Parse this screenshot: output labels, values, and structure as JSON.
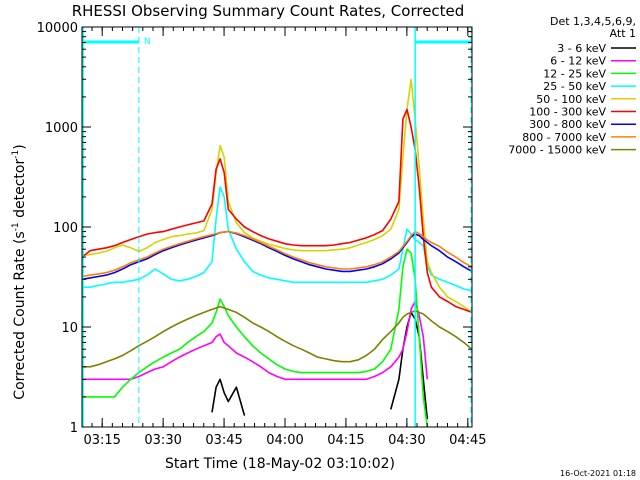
{
  "chart_data": {
    "type": "line",
    "title": "RHESSI Observing Summary Count Rates, Corrected",
    "xlabel": "Start Time (18-May-02 03:10:02)",
    "ylabel": "Corrected Count Rate (s⁻¹ detector⁻¹)",
    "ylabel_main": "Corrected Count Rate (s",
    "ylabel_sup1": "-1",
    "ylabel_mid": " detector",
    "ylabel_sup2": "-1",
    "ylabel_end": ")",
    "yscale": "log",
    "ylim": [
      1,
      10000
    ],
    "xlim_minutes": [
      0,
      96
    ],
    "x_tick_labels": [
      "03:15",
      "03:30",
      "03:45",
      "04:00",
      "04:15",
      "04:30",
      "04:45"
    ],
    "x_tick_minutes": [
      4.97,
      19.97,
      34.97,
      49.97,
      64.97,
      79.97,
      94.97
    ],
    "y_tick_labels": [
      "1",
      "10",
      "100",
      "1000",
      "10000"
    ],
    "y_tick_values": [
      1,
      10,
      100,
      1000,
      10000
    ],
    "legend_header": [
      "Det 1,3,4,5,6,9,",
      "Att 1"
    ],
    "legend_position": "right",
    "timestamp": "16-Oct-2021 01:18",
    "annotation_N": "N",
    "attenuator_markers_minutes": [
      0,
      14,
      82,
      96
    ],
    "x_minutes": [
      0,
      2,
      4,
      6,
      8,
      10,
      12,
      14,
      16,
      18,
      20,
      22,
      24,
      26,
      28,
      30,
      32,
      33,
      34,
      35,
      36,
      38,
      40,
      42,
      44,
      46,
      48,
      50,
      52,
      54,
      56,
      58,
      60,
      62,
      64,
      66,
      68,
      70,
      72,
      74,
      76,
      78,
      79,
      80,
      81,
      82,
      83,
      84,
      85,
      86,
      88,
      90,
      92,
      94,
      96
    ],
    "series": [
      {
        "name": "3 - 6 keV",
        "color": "#000000",
        "values": [
          null,
          null,
          null,
          null,
          null,
          null,
          null,
          null,
          null,
          null,
          null,
          null,
          null,
          null,
          null,
          null,
          1.4,
          2.5,
          3,
          2.2,
          1.8,
          2.5,
          1.3,
          null,
          null,
          null,
          null,
          null,
          null,
          null,
          null,
          null,
          null,
          null,
          null,
          null,
          null,
          null,
          null,
          null,
          1.5,
          3,
          6,
          10,
          14,
          12,
          8,
          3,
          1.2,
          null,
          null,
          null,
          null,
          null,
          null
        ]
      },
      {
        "name": "6 - 12 keV",
        "color": "#ff00ff",
        "values": [
          3,
          3,
          3,
          3,
          3,
          3,
          3,
          3.2,
          3.5,
          3.8,
          4,
          4.5,
          5,
          5.5,
          6,
          6.5,
          7,
          8,
          8.5,
          7,
          6.5,
          5.5,
          5,
          4.5,
          4,
          3.5,
          3.2,
          3,
          3,
          3,
          3,
          3,
          3,
          3,
          3,
          3,
          3,
          3,
          3.2,
          3.5,
          4,
          5,
          6,
          9,
          15,
          18,
          13,
          8,
          3,
          null,
          null,
          null,
          null,
          null,
          null
        ]
      },
      {
        "name": "12 - 25 keV",
        "color": "#00ff00",
        "values": [
          2,
          2,
          2,
          2,
          2,
          2.5,
          3,
          3.5,
          4,
          4.5,
          5,
          5.5,
          6,
          7,
          8,
          9,
          11,
          14,
          19,
          16,
          13,
          10,
          8,
          6.5,
          5.5,
          4.8,
          4.2,
          3.8,
          3.6,
          3.5,
          3.5,
          3.5,
          3.5,
          3.5,
          3.5,
          3.5,
          3.5,
          3.6,
          3.8,
          4.5,
          6,
          15,
          40,
          60,
          55,
          30,
          8,
          2,
          1,
          null,
          null,
          null,
          null,
          null,
          null
        ]
      },
      {
        "name": "25 - 50 keV",
        "color": "#00ffff",
        "values": [
          25,
          25,
          26,
          27,
          28,
          28,
          29,
          30,
          33,
          38,
          34,
          30,
          29,
          30,
          32,
          35,
          45,
          120,
          250,
          200,
          95,
          60,
          45,
          36,
          33,
          31,
          30,
          29,
          28,
          28,
          28,
          28,
          28,
          28,
          28,
          28,
          28,
          28,
          29,
          30,
          33,
          38,
          60,
          95,
          85,
          75,
          70,
          65,
          40,
          33,
          30,
          28,
          26,
          24,
          23
        ]
      },
      {
        "name": "50 - 100 keV",
        "color": "#d4d400",
        "values": [
          52,
          53,
          55,
          57,
          62,
          66,
          62,
          57,
          62,
          70,
          75,
          80,
          82,
          85,
          87,
          92,
          150,
          350,
          650,
          500,
          180,
          110,
          88,
          78,
          72,
          67,
          64,
          61,
          59,
          58,
          58,
          58,
          58,
          59,
          60,
          62,
          66,
          70,
          75,
          82,
          95,
          150,
          500,
          1500,
          3000,
          1200,
          400,
          120,
          45,
          35,
          25,
          20,
          18,
          16,
          14
        ]
      },
      {
        "name": "100 - 300 keV",
        "color": "#ff0000",
        "values": [
          50,
          58,
          60,
          62,
          65,
          70,
          75,
          80,
          85,
          88,
          90,
          95,
          100,
          105,
          110,
          115,
          170,
          380,
          480,
          350,
          150,
          120,
          100,
          90,
          82,
          76,
          72,
          68,
          66,
          65,
          65,
          65,
          65,
          66,
          68,
          70,
          74,
          78,
          84,
          92,
          120,
          180,
          1200,
          1500,
          1000,
          600,
          250,
          80,
          35,
          25,
          20,
          18,
          16,
          15,
          14
        ]
      },
      {
        "name": "300 - 800 keV",
        "color": "#0000ff",
        "values": [
          30,
          31,
          32,
          33,
          35,
          38,
          42,
          45,
          48,
          53,
          58,
          62,
          66,
          70,
          74,
          78,
          82,
          85,
          88,
          89,
          90,
          86,
          80,
          74,
          68,
          62,
          57,
          52,
          48,
          45,
          42,
          40,
          38,
          37,
          36,
          36,
          37,
          38,
          40,
          43,
          48,
          55,
          62,
          70,
          80,
          85,
          82,
          75,
          70,
          65,
          58,
          50,
          45,
          40,
          36
        ]
      },
      {
        "name": "800 - 7000 keV",
        "color": "#ff8000",
        "values": [
          32,
          33,
          34,
          35,
          37,
          40,
          44,
          47,
          50,
          55,
          60,
          64,
          68,
          72,
          76,
          80,
          84,
          86,
          88,
          89,
          90,
          87,
          82,
          76,
          70,
          64,
          59,
          54,
          50,
          47,
          44,
          42,
          40,
          39,
          38,
          38,
          39,
          40,
          42,
          45,
          50,
          57,
          64,
          72,
          82,
          90,
          86,
          80,
          74,
          70,
          64,
          56,
          50,
          44,
          40
        ]
      },
      {
        "name": "7000 - 15000 keV",
        "color": "#808000",
        "values": [
          4,
          4,
          4.2,
          4.5,
          4.8,
          5.2,
          5.8,
          6.5,
          7.2,
          8,
          9,
          10,
          11,
          12,
          13,
          14,
          15,
          15.5,
          16,
          15.5,
          15,
          14,
          12.5,
          11,
          10,
          9,
          8,
          7.2,
          6.5,
          6,
          5.5,
          5,
          4.8,
          4.6,
          4.5,
          4.5,
          4.7,
          5.2,
          6,
          7.5,
          9,
          11,
          12.5,
          13.5,
          14,
          14.5,
          14,
          13.5,
          12.5,
          11.5,
          10,
          9,
          8,
          7,
          6
        ]
      }
    ]
  }
}
